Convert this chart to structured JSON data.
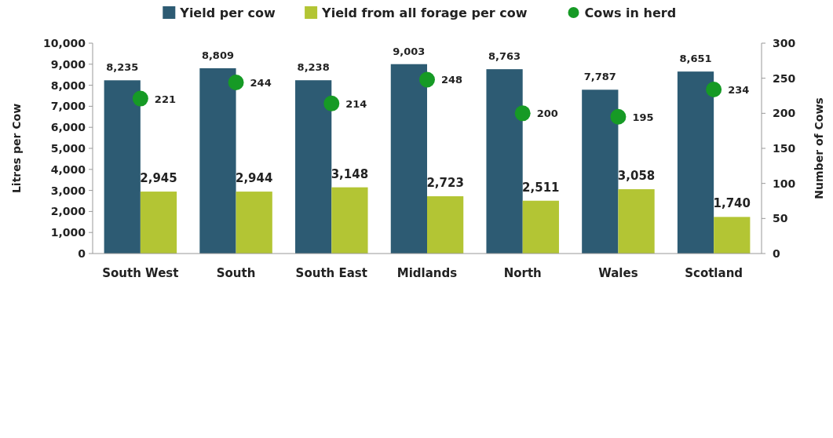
{
  "chart_data": {
    "type": "bar",
    "categories": [
      "South West",
      "South",
      "South East",
      "Midlands",
      "North",
      "Wales",
      "Scotland"
    ],
    "series": [
      {
        "name": "Yield per cow",
        "color": "#2d5b73",
        "values": [
          8235,
          8809,
          8238,
          9003,
          8763,
          7787,
          8651
        ],
        "value_labels": [
          "8,235",
          "8,809",
          "8,238",
          "9,003",
          "8,763",
          "7,787",
          "8,651"
        ]
      },
      {
        "name": "Yield from all forage per cow",
        "color": "#b3c534",
        "values": [
          2945,
          2944,
          3148,
          2723,
          2511,
          3058,
          1740
        ],
        "value_labels": [
          "2,945",
          "2,944",
          "3,148",
          "2,723",
          "2,511",
          "3,058",
          "1,740"
        ]
      },
      {
        "name": "Cows in herd",
        "type": "scatter",
        "axis": "y2",
        "color": "#169a25",
        "values": [
          221,
          244,
          214,
          248,
          200,
          195,
          234
        ],
        "value_labels": [
          "221",
          "244",
          "214",
          "248",
          "200",
          "195",
          "234"
        ]
      }
    ],
    "ylabel": "Litres per Cow",
    "y2label": "Number of Cows",
    "ylim": [
      0,
      10000
    ],
    "yticks": [
      {
        "value": 0,
        "label": "0"
      },
      {
        "value": 1000,
        "label": "1,000"
      },
      {
        "value": 2000,
        "label": "2,000"
      },
      {
        "value": 3000,
        "label": "3,000"
      },
      {
        "value": 4000,
        "label": "4,000"
      },
      {
        "value": 5000,
        "label": "5,000"
      },
      {
        "value": 6000,
        "label": "6,000"
      },
      {
        "value": 7000,
        "label": "7,000"
      },
      {
        "value": 8000,
        "label": "8,000"
      },
      {
        "value": 9000,
        "label": "9,000"
      },
      {
        "value": 10000,
        "label": "10,000"
      }
    ],
    "y2lim": [
      0,
      300
    ],
    "y2ticks": [
      0,
      50,
      100,
      150,
      200,
      250,
      300
    ],
    "legend": "top",
    "grid": false,
    "marker": "circle"
  }
}
